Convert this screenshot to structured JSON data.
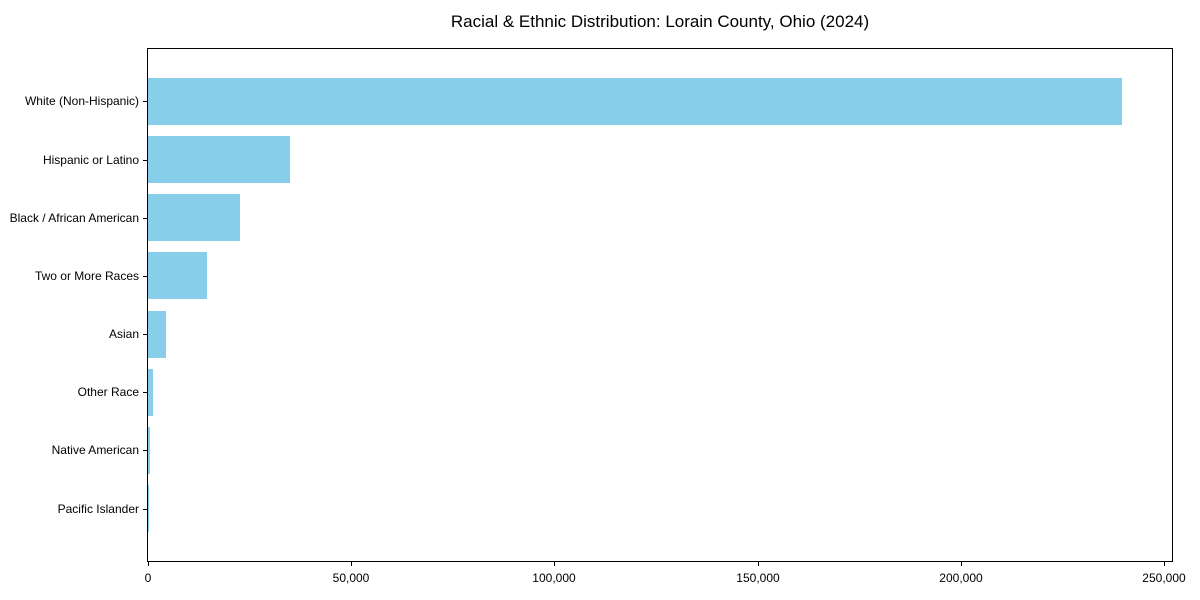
{
  "chart_data": {
    "type": "bar",
    "orientation": "horizontal",
    "title": "Racial & Ethnic Distribution: Lorain County, Ohio (2024)",
    "categories": [
      "White (Non-Hispanic)",
      "Hispanic or Latino",
      "Black / African American",
      "Two or More Races",
      "Asian",
      "Other Race",
      "Native American",
      "Pacific Islander"
    ],
    "values": [
      239600,
      35000,
      22600,
      14500,
      4400,
      1300,
      500,
      100
    ],
    "xlabel": "",
    "ylabel": "",
    "xlim": [
      0,
      252000
    ],
    "xticks": [
      0,
      50000,
      100000,
      150000,
      200000,
      250000
    ],
    "xtick_labels": [
      "0",
      "50,000",
      "100,000",
      "150,000",
      "200,000",
      "250,000"
    ],
    "bar_color": "#87CEEB",
    "spine_color": "#000000",
    "text_color": "#000000",
    "grid": false,
    "legend": null
  }
}
